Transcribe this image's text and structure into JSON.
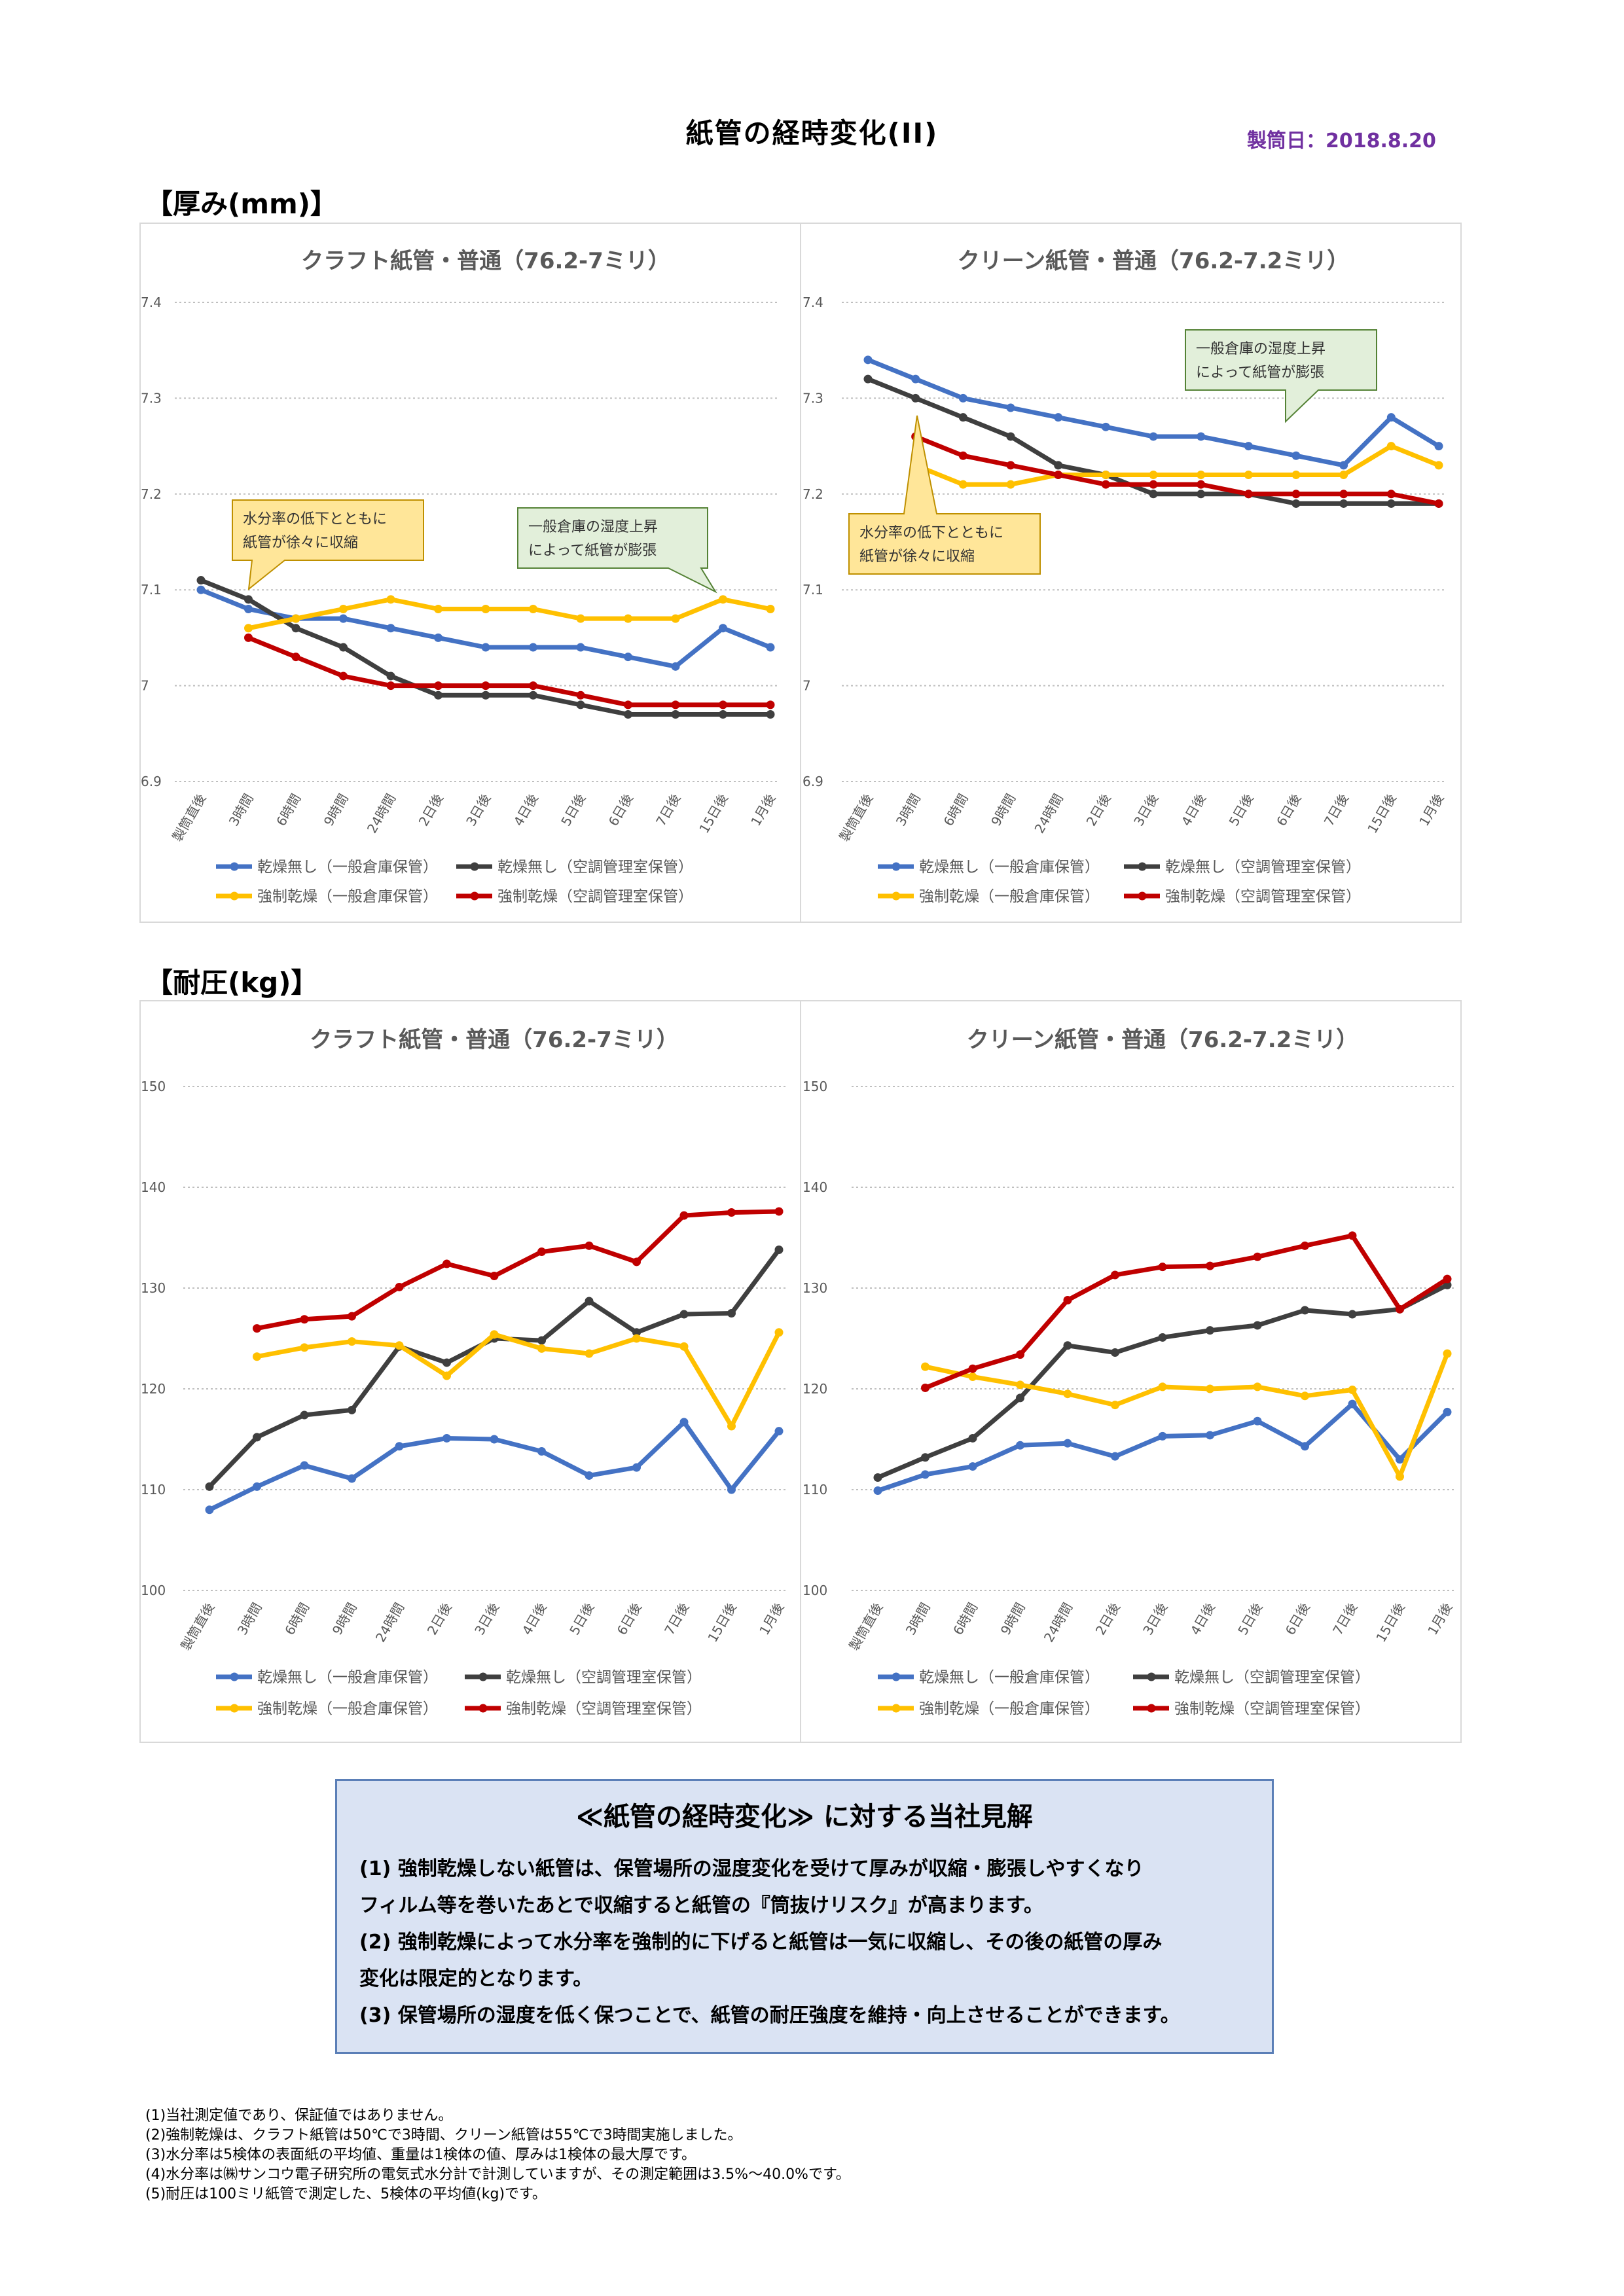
{
  "header": {
    "title": "紙管の経時変化(II)",
    "date": "製筒日：2018.8.20"
  },
  "sections": {
    "thickness": "【厚み(mm)】",
    "strength": "【耐圧(kg)】"
  },
  "colors": {
    "blue": "#4472c4",
    "dark": "#3f3f3f",
    "yellow": "#ffc000",
    "red": "#c00000"
  },
  "chart_data": [
    {
      "id": "thick-kraft",
      "type": "line",
      "title": "クラフト紙管・普通（76.2-7ミリ）",
      "categories": [
        "製筒直後",
        "3時間",
        "6時間",
        "9時間",
        "24時間",
        "2日後",
        "3日後",
        "4日後",
        "5日後",
        "6日後",
        "7日後",
        "15日後",
        "1月後"
      ],
      "ylim": [
        6.9,
        7.4
      ],
      "yticks": [
        "6.9",
        "7",
        "7.1",
        "7.2",
        "7.3",
        "7.4"
      ],
      "ystep": 0.1,
      "series": [
        {
          "name": "乾燥無し（一般倉庫保管）",
          "color": "#4472c4",
          "values": [
            7.1,
            7.08,
            7.07,
            7.07,
            7.06,
            7.05,
            7.04,
            7.04,
            7.04,
            7.03,
            7.02,
            7.06,
            7.04
          ]
        },
        {
          "name": "乾燥無し（空調管理室保管）",
          "color": "#3f3f3f",
          "values": [
            7.11,
            7.09,
            7.06,
            7.04,
            7.01,
            6.99,
            6.99,
            6.99,
            6.98,
            6.97,
            6.97,
            6.97,
            6.97
          ]
        },
        {
          "name": "強制乾燥（一般倉庫保管）",
          "color": "#ffc000",
          "values": [
            null,
            7.06,
            7.07,
            7.08,
            7.09,
            7.08,
            7.08,
            7.08,
            7.07,
            7.07,
            7.07,
            7.09,
            7.08
          ]
        },
        {
          "name": "強制乾燥（空調管理室保管）",
          "color": "#c00000",
          "values": [
            null,
            7.05,
            7.03,
            7.01,
            7.0,
            7.0,
            7.0,
            7.0,
            6.99,
            6.98,
            6.98,
            6.98,
            6.98
          ]
        }
      ],
      "callouts": [
        {
          "lines": [
            "水分率の低下とともに",
            "紙管が徐々に収縮"
          ],
          "fill": "#ffe699",
          "stroke": "#bf9000"
        },
        {
          "lines": [
            "一般倉庫の湿度上昇",
            "によって紙管が膨張"
          ],
          "fill": "#e2efda",
          "stroke": "#548235"
        }
      ]
    },
    {
      "id": "thick-clean",
      "type": "line",
      "title": "クリーン紙管・普通（76.2-7.2ミリ）",
      "categories": [
        "製筒直後",
        "3時間",
        "6時間",
        "9時間",
        "24時間",
        "2日後",
        "3日後",
        "4日後",
        "5日後",
        "6日後",
        "7日後",
        "15日後",
        "1月後"
      ],
      "ylim": [
        6.9,
        7.4
      ],
      "yticks": [
        "6.9",
        "7",
        "7.1",
        "7.2",
        "7.3",
        "7.4"
      ],
      "ystep": 0.1,
      "series": [
        {
          "name": "乾燥無し（一般倉庫保管）",
          "color": "#4472c4",
          "values": [
            7.34,
            7.32,
            7.3,
            7.29,
            7.28,
            7.27,
            7.26,
            7.26,
            7.25,
            7.24,
            7.23,
            7.28,
            7.25
          ]
        },
        {
          "name": "乾燥無し（空調管理室保管）",
          "color": "#3f3f3f",
          "values": [
            7.32,
            7.3,
            7.28,
            7.26,
            7.23,
            7.22,
            7.2,
            7.2,
            7.2,
            7.19,
            7.19,
            7.19,
            7.19
          ]
        },
        {
          "name": "強制乾燥（一般倉庫保管）",
          "color": "#ffc000",
          "values": [
            null,
            7.23,
            7.21,
            7.21,
            7.22,
            7.22,
            7.22,
            7.22,
            7.22,
            7.22,
            7.22,
            7.25,
            7.23
          ]
        },
        {
          "name": "強制乾燥（空調管理室保管）",
          "color": "#c00000",
          "values": [
            null,
            7.26,
            7.24,
            7.23,
            7.22,
            7.21,
            7.21,
            7.21,
            7.2,
            7.2,
            7.2,
            7.2,
            7.19
          ]
        }
      ],
      "callouts": [
        {
          "lines": [
            "一般倉庫の湿度上昇",
            "によって紙管が膨張"
          ],
          "fill": "#e2efda",
          "stroke": "#548235"
        },
        {
          "lines": [
            "水分率の低下とともに",
            "紙管が徐々に収縮"
          ],
          "fill": "#ffe699",
          "stroke": "#bf9000"
        }
      ]
    },
    {
      "id": "press-kraft",
      "type": "line",
      "title": "クラフト紙管・普通（76.2-7ミリ）",
      "categories": [
        "製筒直後",
        "3時間",
        "6時間",
        "9時間",
        "24時間",
        "2日後",
        "3日後",
        "4日後",
        "5日後",
        "6日後",
        "7日後",
        "15日後",
        "1月後"
      ],
      "ylim": [
        100,
        150
      ],
      "yticks": [
        "100",
        "110",
        "120",
        "130",
        "140",
        "150"
      ],
      "ystep": 10,
      "series": [
        {
          "name": "乾燥無し（一般倉庫保管）",
          "color": "#4472c4",
          "values": [
            108.0,
            110.3,
            112.4,
            111.1,
            114.3,
            115.1,
            115.0,
            113.8,
            111.4,
            112.2,
            116.7,
            110.0,
            115.8
          ]
        },
        {
          "name": "乾燥無し（空調管理室保管）",
          "color": "#3f3f3f",
          "values": [
            110.3,
            115.2,
            117.4,
            117.9,
            124.2,
            122.6,
            125.0,
            124.8,
            128.7,
            125.6,
            127.4,
            127.5,
            133.8
          ]
        },
        {
          "name": "強制乾燥（一般倉庫保管）",
          "color": "#ffc000",
          "values": [
            null,
            123.2,
            124.1,
            124.7,
            124.3,
            121.3,
            125.4,
            124.0,
            123.5,
            125.0,
            124.2,
            116.3,
            125.6
          ]
        },
        {
          "name": "強制乾燥（空調管理室保管）",
          "color": "#c00000",
          "values": [
            null,
            126.0,
            126.9,
            127.2,
            130.1,
            132.4,
            131.2,
            133.6,
            134.2,
            132.6,
            137.2,
            137.5,
            137.6
          ]
        }
      ]
    },
    {
      "id": "press-clean",
      "type": "line",
      "title": "クリーン紙管・普通（76.2-7.2ミリ）",
      "categories": [
        "製筒直後",
        "3時間",
        "6時間",
        "9時間",
        "24時間",
        "2日後",
        "3日後",
        "4日後",
        "5日後",
        "6日後",
        "7日後",
        "15日後",
        "1月後"
      ],
      "ylim": [
        100,
        150
      ],
      "yticks": [
        "100",
        "110",
        "120",
        "130",
        "140",
        "150"
      ],
      "ystep": 10,
      "series": [
        {
          "name": "乾燥無し（一般倉庫保管）",
          "color": "#4472c4",
          "values": [
            109.9,
            111.5,
            112.3,
            114.4,
            114.6,
            113.3,
            115.3,
            115.4,
            116.8,
            114.3,
            118.5,
            113.0,
            117.7
          ]
        },
        {
          "name": "乾燥無し（空調管理室保管）",
          "color": "#3f3f3f",
          "values": [
            111.2,
            113.2,
            115.1,
            119.1,
            124.3,
            123.6,
            125.1,
            125.8,
            126.3,
            127.8,
            127.4,
            127.9,
            130.3
          ]
        },
        {
          "name": "強制乾燥（一般倉庫保管）",
          "color": "#ffc000",
          "values": [
            null,
            122.2,
            121.2,
            120.4,
            119.5,
            118.4,
            120.2,
            120.0,
            120.2,
            119.3,
            119.9,
            111.3,
            123.5
          ]
        },
        {
          "name": "強制乾燥（空調管理室保管）",
          "color": "#c00000",
          "values": [
            null,
            120.1,
            122.0,
            123.4,
            128.8,
            131.3,
            132.1,
            132.2,
            133.1,
            134.2,
            135.2,
            127.9,
            130.9
          ]
        }
      ]
    }
  ],
  "opinion": {
    "title": "≪紙管の経時変化≫ に対する当社見解",
    "lines": [
      "(1)  強制乾燥しない紙管は、保管場所の湿度変化を受けて厚みが収縮・膨張しやすくなり",
      "      フィルム等を巻いたあとで収縮すると紙管の『筒抜けリスク』が高まります。",
      "(2)  強制乾燥によって水分率を強制的に下げると紙管は一気に収縮し、その後の紙管の厚み",
      "      変化は限定的となります。",
      "(3)  保管場所の湿度を低く保つことで、紙管の耐圧強度を維持・向上させることができます。"
    ]
  },
  "footnotes": [
    "(1)当社測定値であり、保証値ではありません。",
    "(2)強制乾燥は、クラフト紙管は50℃で3時間、クリーン紙管は55℃で3時間実施しました。",
    "(3)水分率は5検体の表面紙の平均値、重量は1検体の値、厚みは1検体の最大厚です。",
    "(4)水分率は㈱サンコウ電子研究所の電気式水分計で計測していますが、その測定範囲は3.5%～40.0%です。",
    "(5)耐圧は100ミリ紙管で測定した、5検体の平均値(kg)です。"
  ]
}
